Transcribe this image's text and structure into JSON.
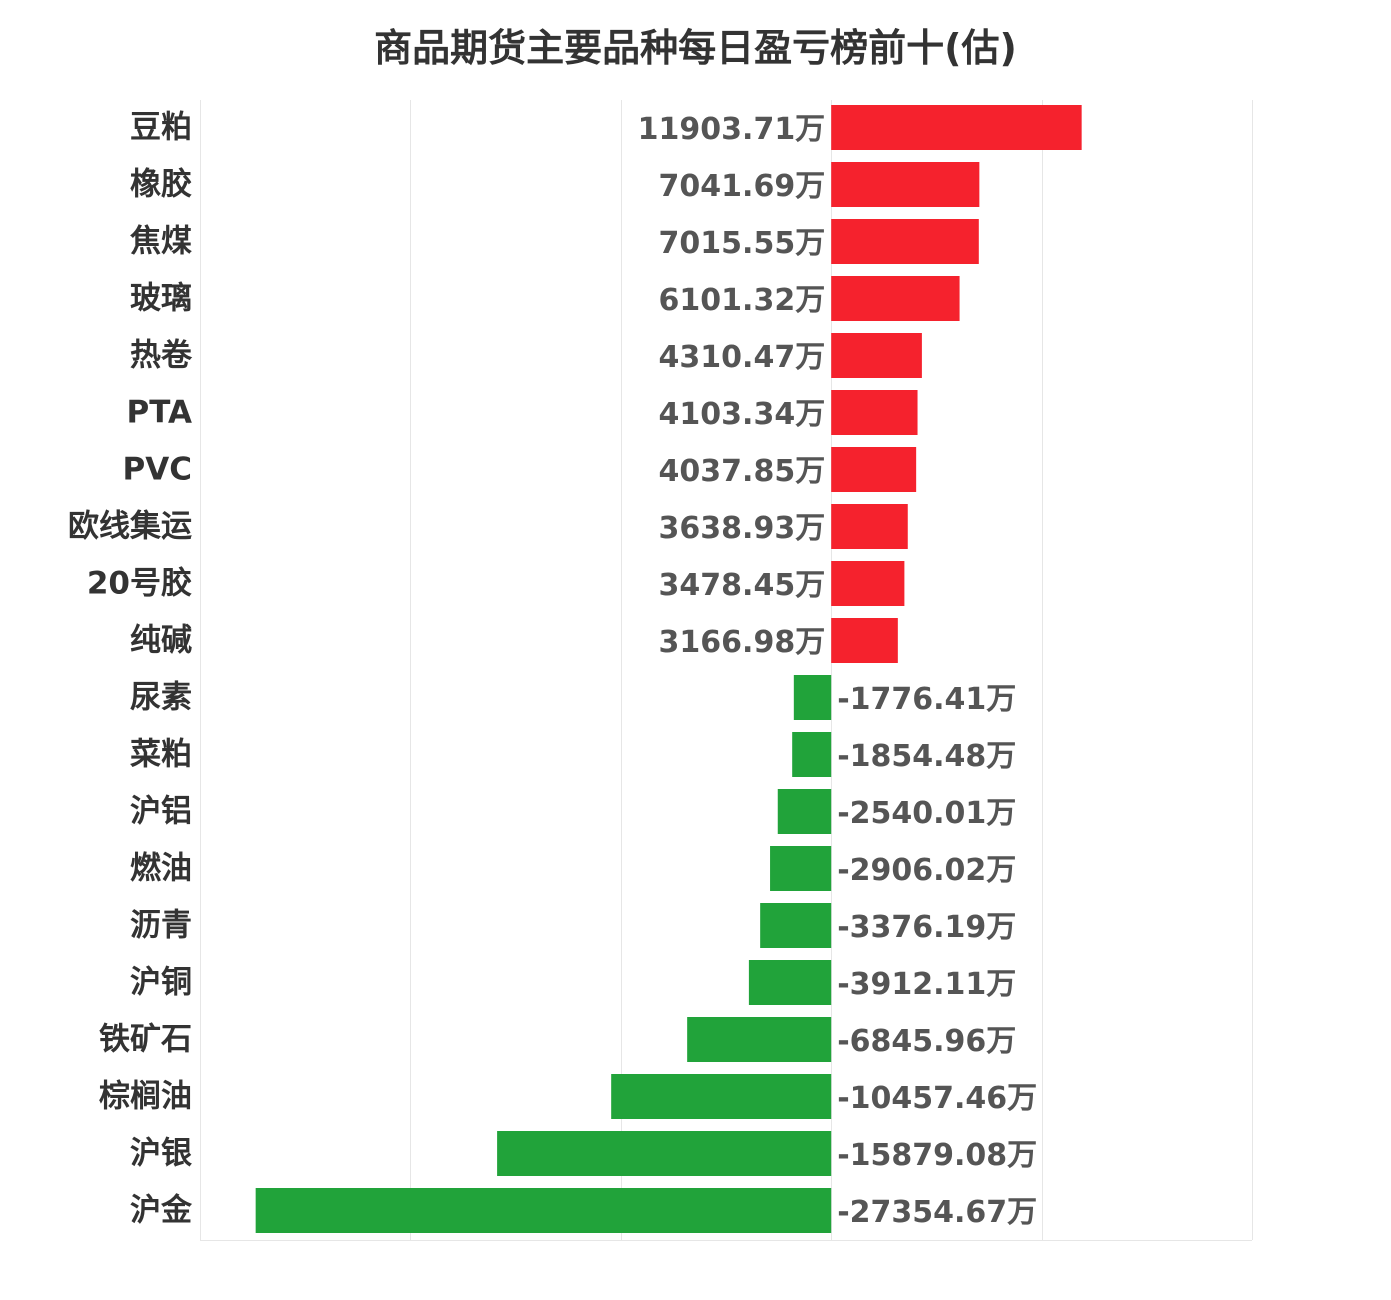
{
  "chart_data": {
    "type": "bar",
    "orientation": "horizontal",
    "title": "商品期货主要品种每日盈亏榜前十(估)",
    "unit_suffix": "万",
    "categories": [
      "豆粕",
      "橡胶",
      "焦煤",
      "玻璃",
      "热卷",
      "PTA",
      "PVC",
      "欧线集运",
      "20号胶",
      "纯碱",
      "尿素",
      "菜粕",
      "沪铝",
      "燃油",
      "沥青",
      "沪铜",
      "铁矿石",
      "棕榈油",
      "沪银",
      "沪金"
    ],
    "values": [
      11903.71,
      7041.69,
      7015.55,
      6101.32,
      4310.47,
      4103.34,
      4037.85,
      3638.93,
      3478.45,
      3166.98,
      -1776.41,
      -1854.48,
      -2540.01,
      -2906.02,
      -3376.19,
      -3912.11,
      -6845.96,
      -10457.46,
      -15879.08,
      -27354.67
    ],
    "value_labels": [
      "11903.71万",
      "7041.69万",
      "7015.55万",
      "6101.32万",
      "4310.47万",
      "4103.34万",
      "4037.85万",
      "3638.93万",
      "3478.45万",
      "3166.98万",
      "-1776.41万",
      "-1854.48万",
      "-2540.01万",
      "-2906.02万",
      "-3376.19万",
      "-3912.11万",
      "-6845.96万",
      "-10457.46万",
      "-15879.08万",
      "-27354.67万"
    ],
    "xlim": [
      -30000,
      20000
    ],
    "grid": true,
    "colors": {
      "positive": "#f5222d",
      "negative": "#21a33a"
    }
  }
}
